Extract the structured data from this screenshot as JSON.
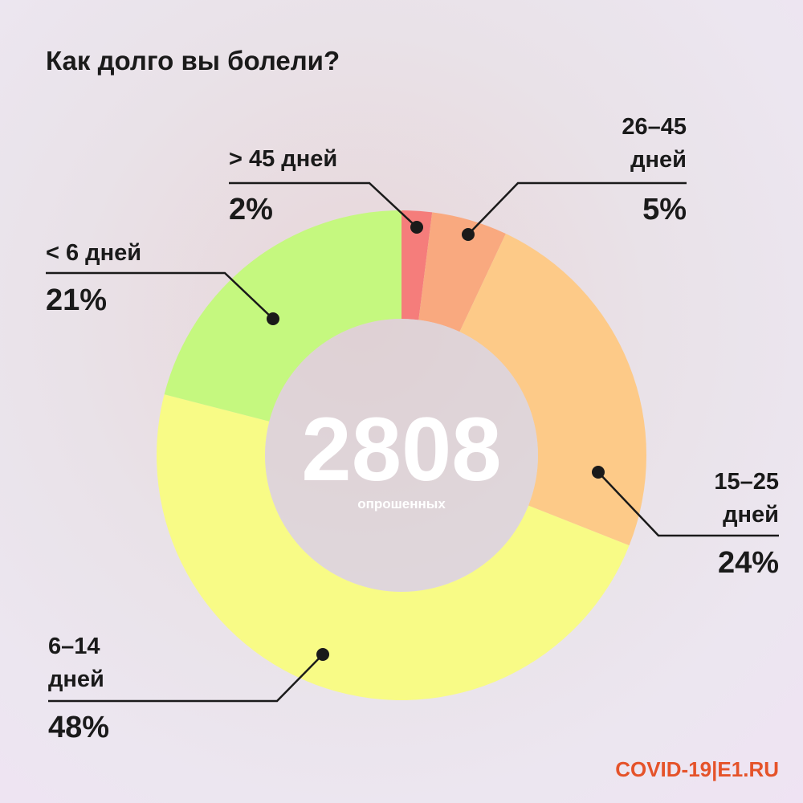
{
  "chart_data": {
    "type": "donut",
    "title": "Как долго вы болели?",
    "categories": [
      "> 45 дней",
      "26–45 дней",
      "15–25 дней",
      "6–14 дней",
      "< 6 дней"
    ],
    "values": [
      2,
      5,
      24,
      48,
      21
    ],
    "value_labels": [
      "2%",
      "5%",
      "24%",
      "48%",
      "21%"
    ],
    "colors": [
      "#f57d7b",
      "#f9a97f",
      "#fdca88",
      "#f8fb86",
      "#c5f87f"
    ],
    "center_value": 2808,
    "center_label": "опрошенных",
    "footer": "COVID-19|E1.RU"
  }
}
